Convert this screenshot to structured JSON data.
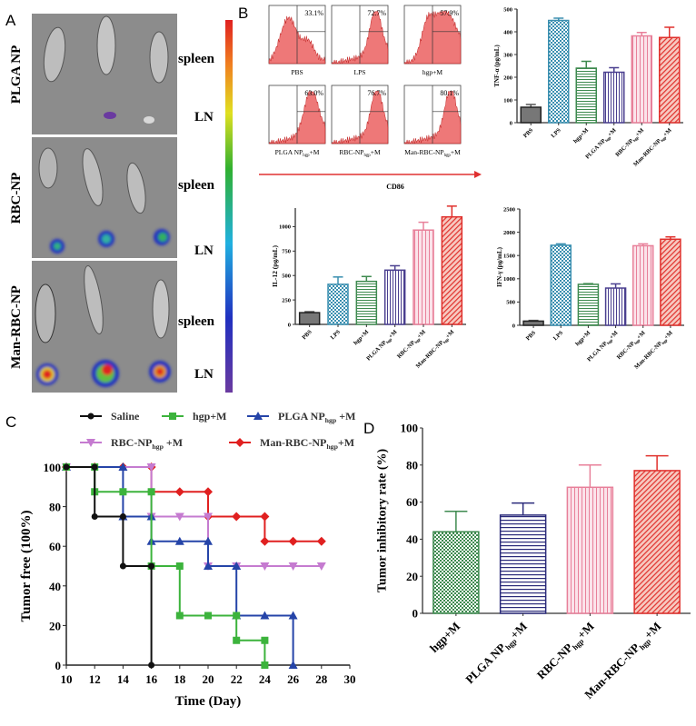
{
  "panels": {
    "a": "A",
    "b": "B",
    "c": "C",
    "d": "D"
  },
  "panel_a": {
    "rows": [
      "PLGA NP",
      "RBC-NP",
      "Man-RBC-NP"
    ],
    "organ_labels": {
      "spleen": "spleen",
      "ln": "LN"
    }
  },
  "colors": {
    "pbs": "#555555",
    "lps": "#3a8fb0",
    "hgp": "#3e8a4f",
    "plga": "#4a3f8f",
    "rbc": "#e8809a",
    "man": "#e0302c",
    "navy": "#2a2a7a",
    "saline": "#111111",
    "hgp_line": "#3cb33c",
    "plga_line": "#2544a8",
    "rbc_line": "#c57bd0",
    "man_line": "#e02020",
    "flow": "#e84b4b"
  },
  "chart_data": [
    {
      "id": "flow",
      "type": "histogram-grid",
      "xlabel": "CD86",
      "panels": [
        {
          "label": [
            [
              "PBS"
            ]
          ],
          "percent": "33.1%"
        },
        {
          "label": [
            [
              "LPS"
            ]
          ],
          "percent": "72.7%"
        },
        {
          "label": [
            [
              "hgp+M"
            ]
          ],
          "percent": "57.9%"
        },
        {
          "label": [
            [
              "PLGA NP"
            ],
            [
              "hgp",
              "sub"
            ],
            [
              "+M"
            ]
          ],
          "percent": "63.0%"
        },
        {
          "label": [
            [
              "RBC-NP"
            ],
            [
              "hgp",
              "sub"
            ],
            [
              "+M"
            ]
          ],
          "percent": "76.7%"
        },
        {
          "label": [
            [
              "Man-RBC-NP"
            ],
            [
              "hgp",
              "sub"
            ],
            [
              "+M"
            ]
          ],
          "percent": "80.1%"
        }
      ]
    },
    {
      "id": "tnf",
      "type": "bar",
      "ylabel": "TNF-α (pg/mL)",
      "ylim": [
        0,
        500
      ],
      "yticks": [
        0,
        100,
        200,
        300,
        400,
        500
      ],
      "categories": [
        [
          [
            "PBS"
          ]
        ],
        [
          [
            "LPS"
          ]
        ],
        [
          [
            "hgp+M"
          ]
        ],
        [
          [
            "PLGA NP"
          ],
          [
            "hgp",
            "sub"
          ],
          [
            "+M"
          ]
        ],
        [
          [
            "RBC-NP"
          ],
          [
            "hgp",
            "sub"
          ],
          [
            "+M"
          ]
        ],
        [
          [
            "Man-RBC-NP"
          ],
          [
            "hgp",
            "sub"
          ],
          [
            "+M"
          ]
        ]
      ],
      "values": [
        68,
        450,
        240,
        222,
        382,
        375
      ],
      "errors": [
        12,
        10,
        30,
        20,
        15,
        45
      ],
      "styles": [
        "pbs",
        "lps",
        "hgp",
        "plga",
        "rbc",
        "man"
      ]
    },
    {
      "id": "il12",
      "type": "bar",
      "ylabel": "IL-12 (pg/mL)",
      "ylim": [
        0,
        1190
      ],
      "yticks": [
        0,
        250,
        500,
        750,
        1000
      ],
      "categories": [
        [
          [
            "PBS"
          ]
        ],
        [
          [
            "LPS"
          ]
        ],
        [
          [
            "hgp+M"
          ]
        ],
        [
          [
            "PLGA NP"
          ],
          [
            "hgp",
            "sub"
          ],
          [
            "+M"
          ]
        ],
        [
          [
            "RBC-NP"
          ],
          [
            "hgp",
            "sub"
          ],
          [
            "+M"
          ]
        ],
        [
          [
            "Man-RBC-NP"
          ],
          [
            "hgp",
            "sub"
          ],
          [
            "+M"
          ]
        ]
      ],
      "values": [
        120,
        410,
        440,
        555,
        965,
        1100
      ],
      "errors": [
        10,
        75,
        50,
        45,
        80,
        110
      ],
      "styles": [
        "pbs",
        "lps",
        "hgp",
        "plga",
        "rbc",
        "man"
      ]
    },
    {
      "id": "ifn",
      "type": "bar",
      "ylabel": "IFN-γ (pg/mL)",
      "ylim": [
        0,
        2500
      ],
      "yticks": [
        0,
        500,
        1000,
        1500,
        2000,
        2500
      ],
      "categories": [
        [
          [
            "PBS"
          ]
        ],
        [
          [
            "LPS"
          ]
        ],
        [
          [
            "hgp+M"
          ]
        ],
        [
          [
            "PLGA NP"
          ],
          [
            "hgp",
            "sub"
          ],
          [
            "+M"
          ]
        ],
        [
          [
            "RBC-NP"
          ],
          [
            "hgp",
            "sub"
          ],
          [
            "+M"
          ]
        ],
        [
          [
            "Man-RBC-NP"
          ],
          [
            "hgp",
            "sub"
          ],
          [
            "+M"
          ]
        ]
      ],
      "values": [
        90,
        1720,
        880,
        800,
        1710,
        1850
      ],
      "errors": [
        15,
        30,
        15,
        90,
        40,
        50
      ],
      "styles": [
        "pbs",
        "lps",
        "hgp",
        "plga",
        "rbc",
        "man"
      ]
    },
    {
      "id": "survival",
      "type": "line",
      "xlabel": "Time (Day)",
      "ylabel": "Tumor free (100%)",
      "xlim": [
        10,
        30
      ],
      "ylim": [
        0,
        100
      ],
      "xticks": [
        10,
        12,
        14,
        16,
        18,
        20,
        22,
        24,
        26,
        28,
        30
      ],
      "yticks": [
        0,
        20,
        40,
        60,
        80,
        100
      ],
      "legend_position": "top",
      "series": [
        {
          "name": [
            [
              "Saline"
            ]
          ],
          "color": "saline",
          "marker": "circle",
          "points": [
            [
              10,
              100
            ],
            [
              12,
              100
            ],
            [
              12,
              75
            ],
            [
              14,
              75
            ],
            [
              14,
              50
            ],
            [
              16,
              50
            ],
            [
              16,
              0
            ]
          ]
        },
        {
          "name": [
            [
              "hgp+M"
            ]
          ],
          "color": "hgp_line",
          "marker": "square",
          "points": [
            [
              10,
              100
            ],
            [
              12,
              100
            ],
            [
              12,
              87.5
            ],
            [
              14,
              87.5
            ],
            [
              16,
              87.5
            ],
            [
              16,
              50
            ],
            [
              18,
              50
            ],
            [
              18,
              25
            ],
            [
              20,
              25
            ],
            [
              22,
              25
            ],
            [
              22,
              12.5
            ],
            [
              24,
              12.5
            ],
            [
              24,
              0
            ]
          ]
        },
        {
          "name": [
            [
              "PLGA NP"
            ],
            [
              "hgp",
              "sub"
            ],
            [
              " +M"
            ]
          ],
          "color": "plga_line",
          "marker": "triangle",
          "points": [
            [
              10,
              100
            ],
            [
              14,
              100
            ],
            [
              14,
              75
            ],
            [
              16,
              75
            ],
            [
              16,
              62.5
            ],
            [
              18,
              62.5
            ],
            [
              20,
              62.5
            ],
            [
              20,
              50
            ],
            [
              22,
              50
            ],
            [
              22,
              25
            ],
            [
              24,
              25
            ],
            [
              26,
              25
            ],
            [
              26,
              0
            ]
          ]
        },
        {
          "name": [
            [
              "RBC-NP"
            ],
            [
              "hgp",
              "sub"
            ],
            [
              " +M"
            ]
          ],
          "color": "rbc_line",
          "marker": "triangle-down",
          "points": [
            [
              10,
              100
            ],
            [
              16,
              100
            ],
            [
              16,
              75
            ],
            [
              18,
              75
            ],
            [
              20,
              75
            ],
            [
              20,
              50
            ],
            [
              22,
              50
            ],
            [
              24,
              50
            ],
            [
              26,
              50
            ],
            [
              28,
              50
            ]
          ]
        },
        {
          "name": [
            [
              "Man-RBC-NP"
            ],
            [
              "hgp",
              "sub"
            ],
            [
              "+M"
            ]
          ],
          "color": "man_line",
          "marker": "diamond",
          "points": [
            [
              10,
              100
            ],
            [
              12,
              100
            ],
            [
              14,
              100
            ],
            [
              16,
              100
            ],
            [
              16,
              87.5
            ],
            [
              18,
              87.5
            ],
            [
              20,
              87.5
            ],
            [
              20,
              75
            ],
            [
              22,
              75
            ],
            [
              24,
              75
            ],
            [
              24,
              62.5
            ],
            [
              26,
              62.5
            ],
            [
              28,
              62.5
            ]
          ]
        }
      ]
    },
    {
      "id": "inhibit",
      "type": "bar",
      "ylabel": "Tumor inhibitory rate (%)",
      "ylim": [
        0,
        100
      ],
      "yticks": [
        0,
        20,
        40,
        60,
        80,
        100
      ],
      "categories": [
        [
          [
            "hgp+M"
          ]
        ],
        [
          [
            "PLGA NP"
          ],
          [
            "hgp",
            "sub"
          ],
          [
            "+M"
          ]
        ],
        [
          [
            "RBC-NP"
          ],
          [
            "hgp",
            "sub"
          ],
          [
            "+M"
          ]
        ],
        [
          [
            "Man-RBC-NP"
          ],
          [
            "hgp",
            "sub"
          ],
          [
            "+M"
          ]
        ]
      ],
      "values": [
        44,
        53,
        68,
        77
      ],
      "errors": [
        11,
        6.5,
        12,
        8
      ],
      "styles": [
        "hgpcheck",
        "navy",
        "rbc",
        "man"
      ]
    }
  ]
}
